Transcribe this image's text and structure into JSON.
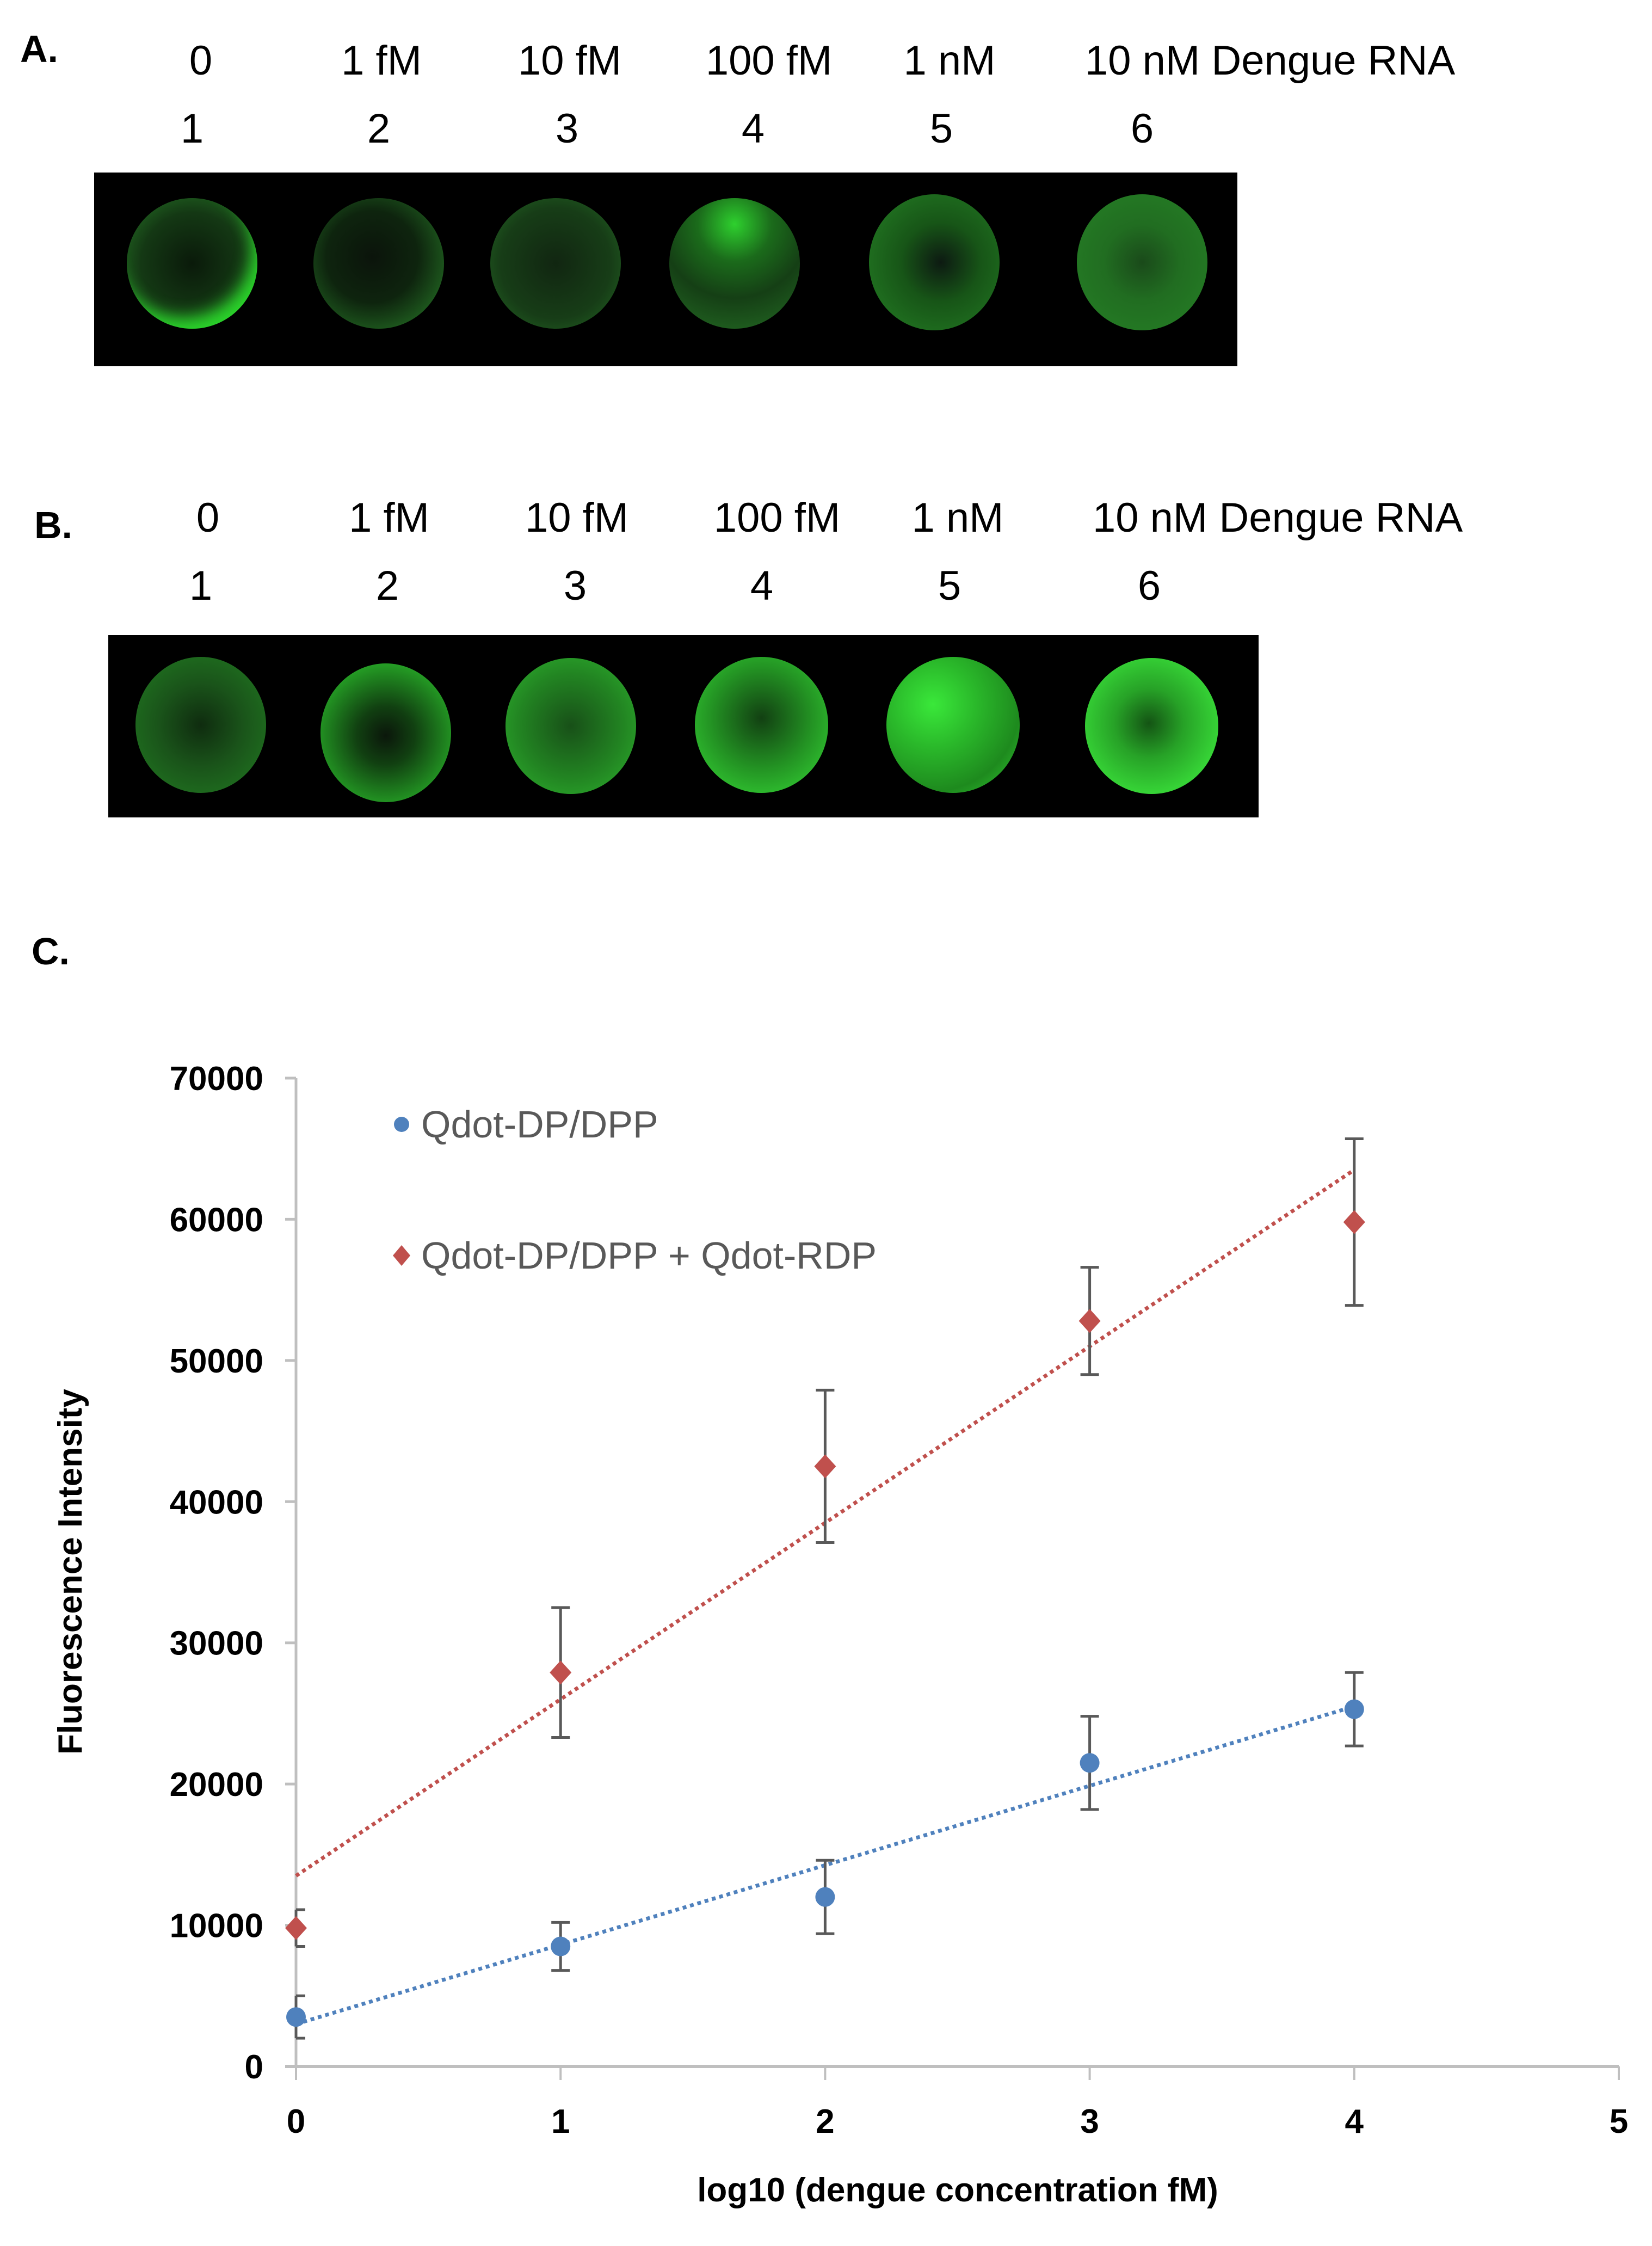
{
  "panels": {
    "A": {
      "letter": "A.",
      "concentrations": [
        "0",
        "1 fM",
        "10 fM",
        "100 fM",
        "1 nM",
        "10 nM Dengue RNA"
      ],
      "lanes": [
        "1",
        "2",
        "3",
        "4",
        "5",
        "6"
      ],
      "wells": [
        {
          "lane": "1",
          "brightness": 0.35,
          "highlight": "right-rim"
        },
        {
          "lane": "2",
          "brightness": 0.4,
          "highlight": "rim"
        },
        {
          "lane": "3",
          "brightness": 0.35,
          "highlight": "rim"
        },
        {
          "lane": "4",
          "brightness": 0.45,
          "highlight": "top"
        },
        {
          "lane": "5",
          "brightness": 0.5,
          "highlight": "left-rim"
        },
        {
          "lane": "6",
          "brightness": 0.55,
          "highlight": "uniform"
        }
      ]
    },
    "B": {
      "letter": "B.",
      "concentrations": [
        "0",
        "1 fM",
        "10 fM",
        "100 fM",
        "1 nM",
        "10 nM Dengue RNA"
      ],
      "lanes": [
        "1",
        "2",
        "3",
        "4",
        "5",
        "6"
      ],
      "wells": [
        {
          "lane": "1",
          "brightness": 0.45
        },
        {
          "lane": "2",
          "brightness": 0.6
        },
        {
          "lane": "3",
          "brightness": 0.6
        },
        {
          "lane": "4",
          "brightness": 0.7
        },
        {
          "lane": "5",
          "brightness": 0.85
        },
        {
          "lane": "6",
          "brightness": 0.9
        }
      ]
    },
    "C": {
      "letter": "C."
    }
  },
  "colors": {
    "series_blue": "#4f81bd",
    "series_red": "#c0504d",
    "axis": "#bfbfbf",
    "error_bar": "#595959",
    "legend_text": "#595959",
    "well_green": "#1fd11f"
  },
  "chart_data": {
    "type": "scatter",
    "title": "",
    "xlabel": "log10 (dengue concentration fM)",
    "ylabel": "Fluorescence Intensity",
    "xlim": [
      0,
      5
    ],
    "ylim": [
      0,
      70000
    ],
    "x_ticks": [
      "0",
      "1",
      "2",
      "3",
      "4",
      "5"
    ],
    "y_ticks": [
      "0",
      "10000",
      "20000",
      "30000",
      "40000",
      "50000",
      "60000",
      "70000"
    ],
    "grid": false,
    "legend_position": "upper-left inside",
    "x": [
      0,
      1,
      2,
      3,
      4
    ],
    "series": [
      {
        "name": "Qdot-DP/DPP",
        "marker": "circle",
        "color": "#4f81bd",
        "values": [
          3500,
          8500,
          12000,
          21500,
          25300
        ],
        "error": [
          1500,
          1700,
          2600,
          3300,
          2600
        ],
        "trendline": {
          "style": "dotted",
          "linear": true,
          "y_at_x0": 3000,
          "y_at_x4": 25500
        }
      },
      {
        "name": "Qdot-DP/DPP + Qdot-RDP",
        "marker": "diamond",
        "color": "#c0504d",
        "values": [
          9800,
          27900,
          42500,
          52800,
          59800
        ],
        "error": [
          1300,
          4600,
          5400,
          3800,
          5900
        ],
        "trendline": {
          "style": "dotted",
          "linear": true,
          "y_at_x0": 13500,
          "y_at_x4": 63500
        }
      }
    ]
  }
}
